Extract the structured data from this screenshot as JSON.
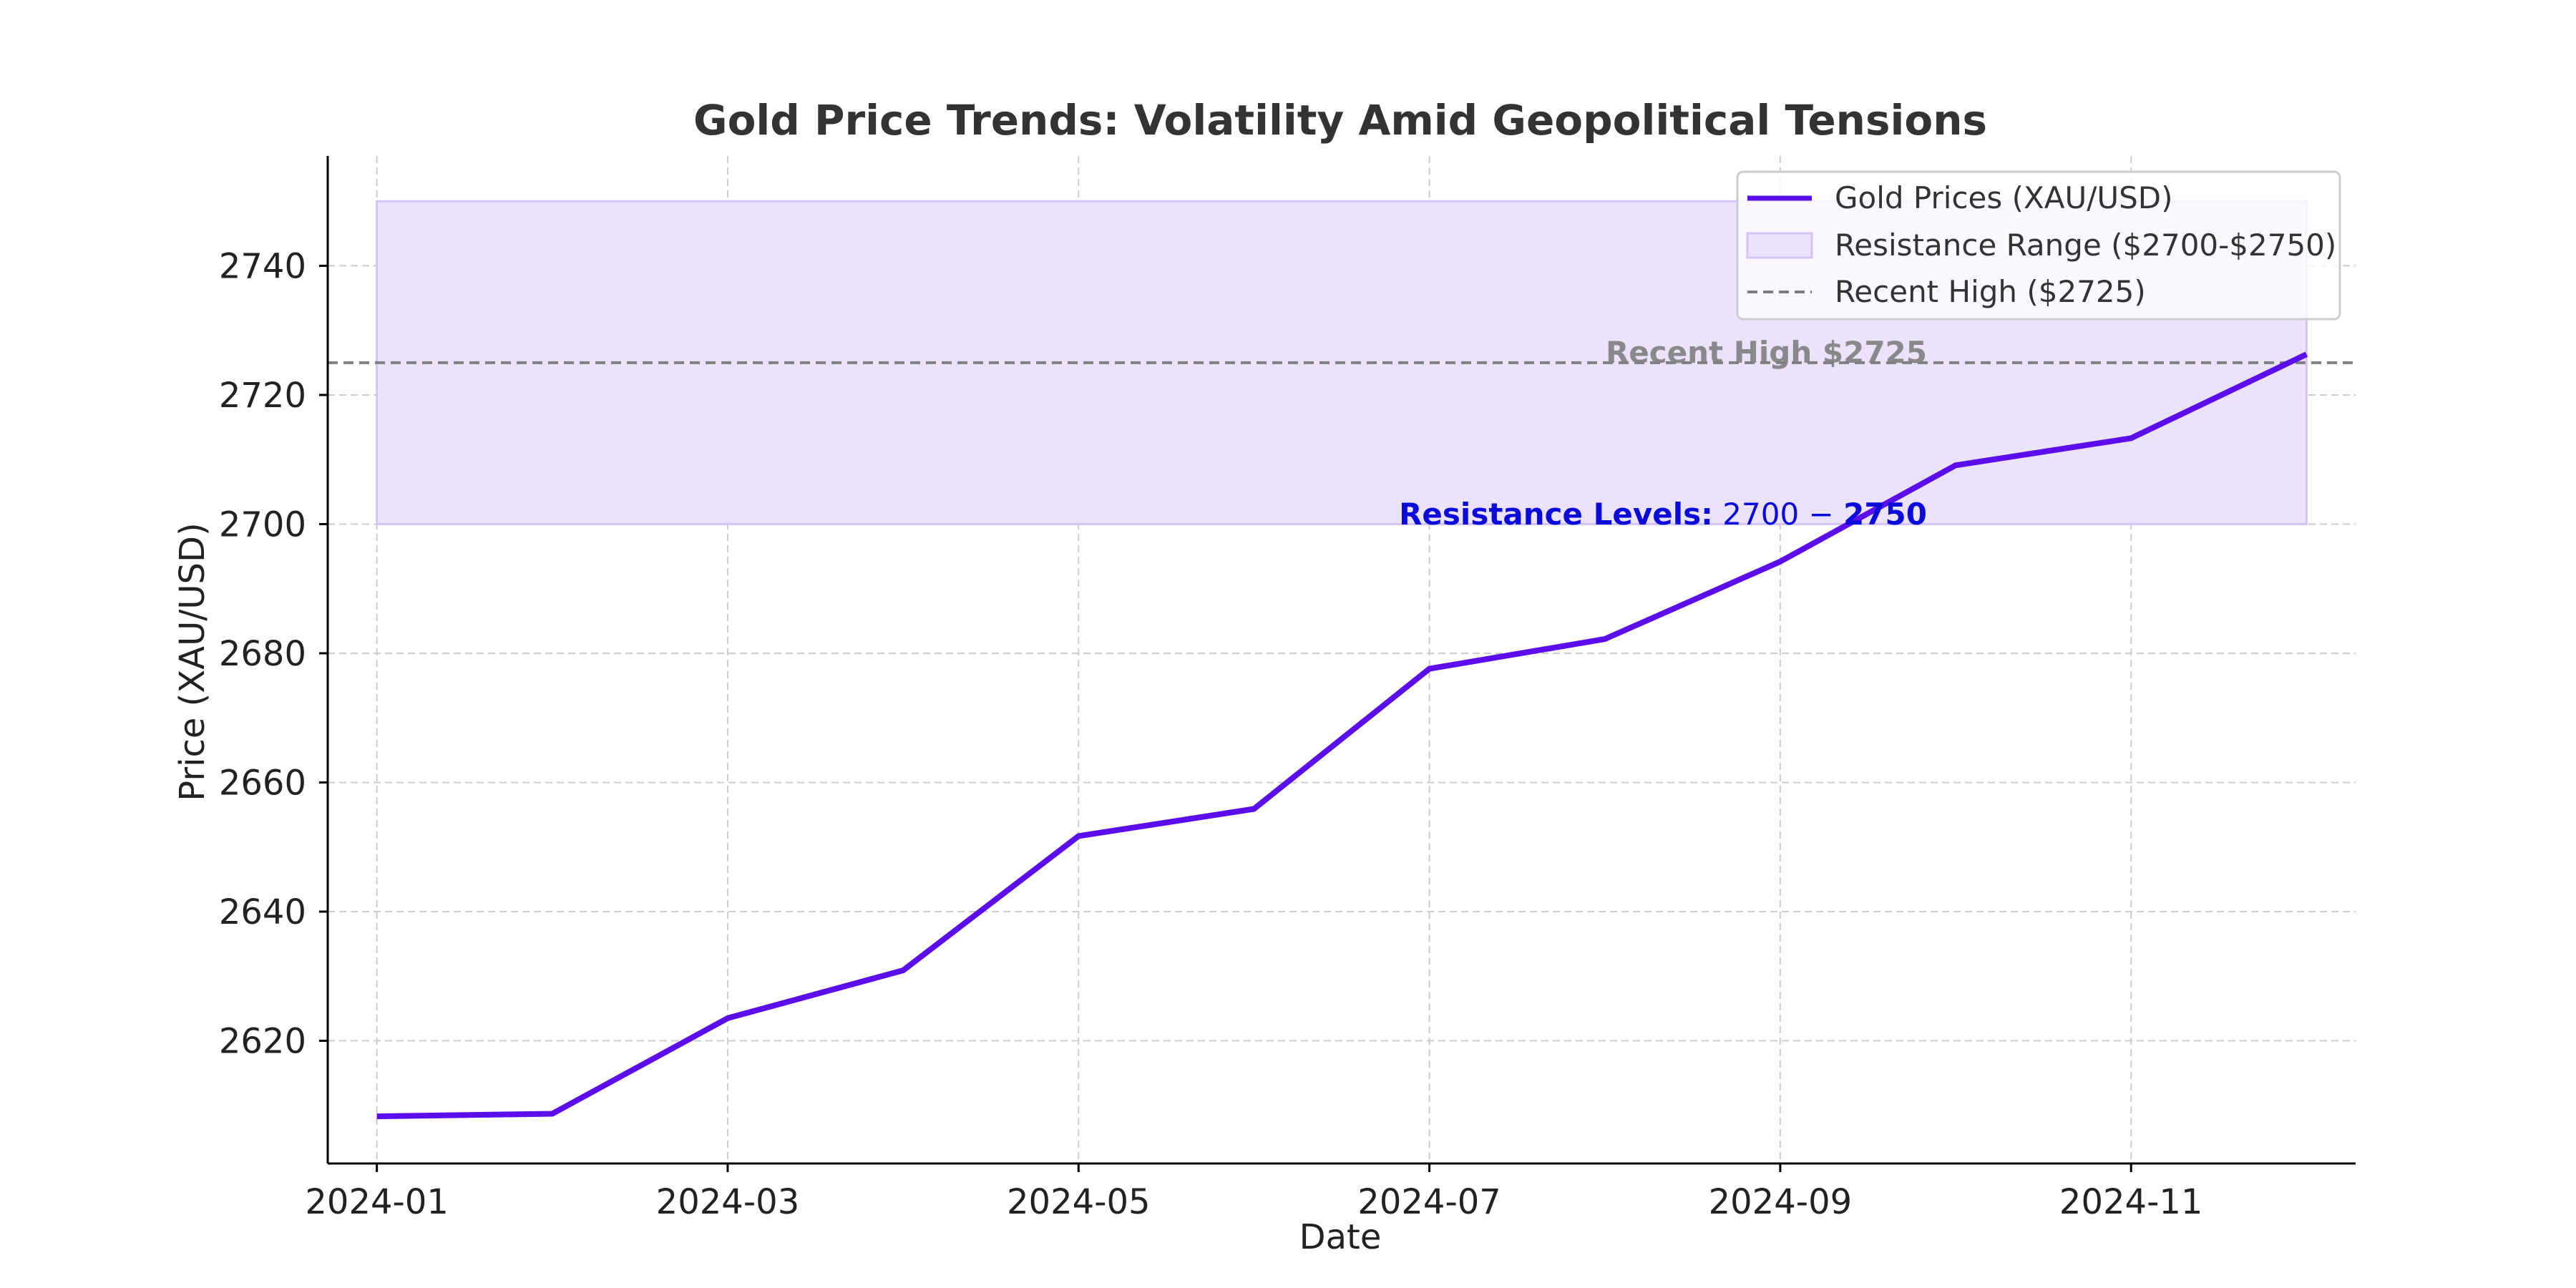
{
  "colors": {
    "line": "#5b0eeb",
    "band_fill": "#ebe2fc",
    "band_edge": "#d2c4f7",
    "recent_high": "#7f7f7f",
    "resistance_text": "#0a0adb",
    "grid": "#cccccc",
    "text": "#333333",
    "axis": "#000000"
  },
  "chart_data": {
    "type": "line",
    "title": "Gold Price Trends: Volatility Amid Geopolitical Tensions",
    "xlabel": "Date",
    "ylabel": "Price (XAU/USD)",
    "x_tick_labels": [
      "2024-01",
      "2024-03",
      "2024-05",
      "2024-07",
      "2024-09",
      "2024-11"
    ],
    "x_tick_indices": [
      0,
      2,
      4,
      6,
      8,
      10
    ],
    "y_ticks": [
      2620,
      2640,
      2660,
      2680,
      2700,
      2720,
      2740
    ],
    "ylim": [
      2601,
      2757
    ],
    "xlim_index": [
      -0.28,
      11.28
    ],
    "grid": true,
    "legend_position": "top-right",
    "x": [
      "2024-01",
      "2024-02",
      "2024-03",
      "2024-04",
      "2024-05",
      "2024-06",
      "2024-07",
      "2024-08",
      "2024-09",
      "2024-10",
      "2024-11",
      "2024-12"
    ],
    "series": [
      {
        "name": "Gold Prices (XAU/USD)",
        "values": [
          2608.3,
          2608.7,
          2623.5,
          2630.9,
          2651.7,
          2655.9,
          2677.6,
          2682.2,
          2694.2,
          2709.1,
          2713.3,
          2726.3
        ]
      }
    ],
    "resistance_band": {
      "name": "Resistance Range ($2700-$2750)",
      "y_min": 2700,
      "y_max": 2750,
      "x_start": "2024-01",
      "x_end": "2024-12"
    },
    "recent_high": {
      "name": "Recent High ($2725)",
      "y": 2725
    },
    "annotations": [
      {
        "id": "recent-high",
        "text": "Recent High $2725",
        "x": "2024-09",
        "y": 2725
      },
      {
        "id": "resistance",
        "bold": "Resistance Levels:",
        "rest": " 2700 − ",
        "bold2": "2750",
        "x": "2024-09",
        "y": 2700
      }
    ]
  }
}
